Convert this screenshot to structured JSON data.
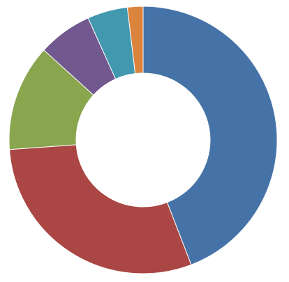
{
  "chart_data": {
    "type": "pie",
    "subtype": "donut",
    "title": "",
    "legend": "none",
    "categories": [
      "",
      "",
      "",
      "",
      "",
      ""
    ],
    "values": [
      44.6,
      30.0,
      13.0,
      6.6,
      4.9,
      1.9
    ],
    "colors": [
      "#4572a7",
      "#aa4643",
      "#89a54e",
      "#71588f",
      "#4198af",
      "#db843d"
    ]
  }
}
